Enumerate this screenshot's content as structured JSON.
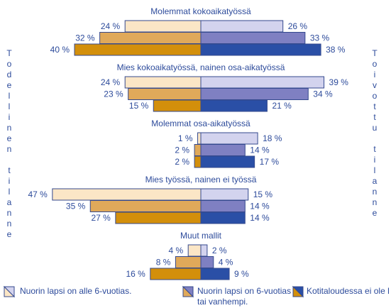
{
  "chart_data": {
    "type": "butterfly",
    "categories": [
      "Molemmat kokoaikatyössä",
      "Mies kokoaikatyössä, nainen osa-aikatyössä",
      "Molemmat osa-aikatyössä",
      "Mies työssä, nainen ei työssä",
      "Muut mallit"
    ],
    "left_label": "Todellinen tilanne",
    "right_label": "Toivottu tilanne",
    "series": [
      {
        "name": "Nuorin lapsi on alle 6-vuotias.",
        "left_color": "#fbe6c6",
        "right_color": "#d3d3ee",
        "left": [
          24,
          24,
          1,
          47,
          4
        ],
        "left_value_labels": [
          "24 %",
          "24 %",
          "1 %",
          "47 %",
          "4 %"
        ],
        "right": [
          26,
          39,
          18,
          15,
          2
        ],
        "right_value_labels": [
          "26 %",
          "39 %",
          "18 %",
          "15 %",
          "2 %"
        ]
      },
      {
        "name": "Nuorin lapsi on 6-vuotias tai vanhempi.",
        "left_color": "#e0a95a",
        "right_color": "#7f80c2",
        "left": [
          32,
          23,
          2,
          35,
          8
        ],
        "left_value_labels": [
          "32 %",
          "23 %",
          "2 %",
          "35 %",
          "8 %"
        ],
        "right": [
          33,
          34,
          14,
          14,
          4
        ],
        "right_value_labels": [
          "33 %",
          "34 %",
          "14 %",
          "14 %",
          "4 %"
        ]
      },
      {
        "name": "Kotitaloudessa ei ole l",
        "left_color": "#d38f0b",
        "right_color": "#2a4fa6",
        "left": [
          40,
          15,
          2,
          27,
          16
        ],
        "left_value_labels": [
          "40 %",
          "15 %",
          "2 %",
          "27 %",
          "16 %"
        ],
        "right": [
          38,
          21,
          17,
          14,
          9
        ],
        "right_value_labels": [
          "38 %",
          "21 %",
          "17 %",
          "14 %",
          "9 %"
        ]
      }
    ]
  }
}
